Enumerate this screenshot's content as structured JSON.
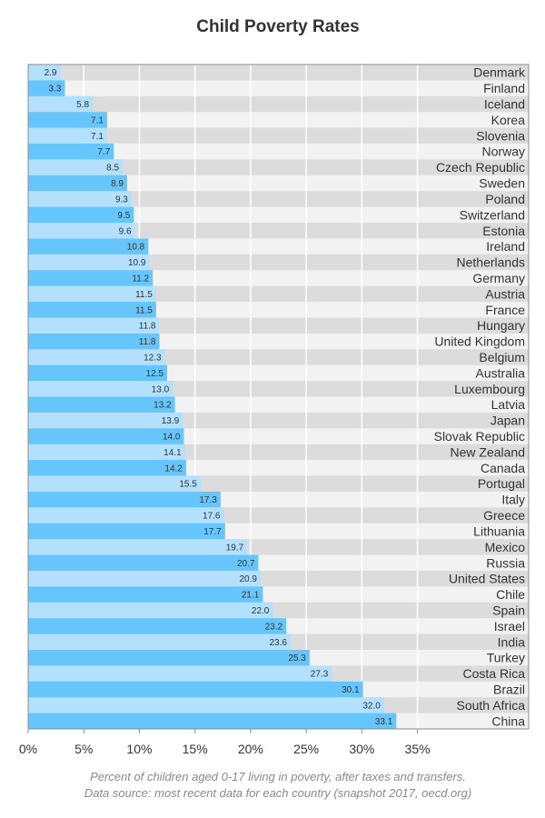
{
  "chart_data": {
    "type": "bar",
    "orientation": "horizontal",
    "title": "Child Poverty Rates",
    "xlabel": "",
    "ylabel": "",
    "xlim": [
      0,
      45
    ],
    "x_ticks": [
      0,
      5,
      10,
      15,
      20,
      25,
      30,
      35
    ],
    "x_tick_labels": [
      "0%",
      "5%",
      "10%",
      "15%",
      "20%",
      "25%",
      "30%",
      "35%"
    ],
    "grid": true,
    "legend": "none",
    "categories": [
      "Denmark",
      "Finland",
      "Iceland",
      "Korea",
      "Slovenia",
      "Norway",
      "Czech Republic",
      "Sweden",
      "Poland",
      "Switzerland",
      "Estonia",
      "Ireland",
      "Netherlands",
      "Germany",
      "Austria",
      "France",
      "Hungary",
      "United Kingdom",
      "Belgium",
      "Australia",
      "Luxembourg",
      "Latvia",
      "Japan",
      "Slovak Republic",
      "New Zealand",
      "Canada",
      "Portugal",
      "Italy",
      "Greece",
      "Lithuania",
      "Mexico",
      "Russia",
      "United States",
      "Chile",
      "Spain",
      "Israel",
      "India",
      "Turkey",
      "Costa Rica",
      "Brazil",
      "South Africa",
      "China"
    ],
    "values": [
      2.9,
      3.3,
      5.8,
      7.1,
      7.1,
      7.7,
      8.5,
      8.9,
      9.3,
      9.5,
      9.6,
      10.8,
      10.9,
      11.2,
      11.5,
      11.5,
      11.8,
      11.8,
      12.3,
      12.5,
      13.0,
      13.2,
      13.9,
      14.0,
      14.1,
      14.2,
      15.5,
      17.3,
      17.6,
      17.7,
      19.7,
      20.7,
      20.9,
      21.1,
      22.0,
      23.2,
      23.6,
      25.3,
      27.3,
      30.1,
      32.0,
      33.1
    ],
    "value_labels": [
      "2.9",
      "3.3",
      "5.8",
      "7.1",
      "7.1",
      "7.7",
      "8.5",
      "8.9",
      "9.3",
      "9.5",
      "9.6",
      "10.8",
      "10.9",
      "11.2",
      "11.5",
      "11.5",
      "11.8",
      "11.8",
      "12.3",
      "12.5",
      "13.0",
      "13.2",
      "13.9",
      "14.0",
      "14.1",
      "14.2",
      "15.5",
      "17.3",
      "17.6",
      "17.7",
      "19.7",
      "20.7",
      "20.9",
      "21.1",
      "22.0",
      "23.2",
      "23.6",
      "25.3",
      "27.3",
      "30.1",
      "32.0",
      "33.1"
    ],
    "colors": {
      "bar_even": "#b3e0fd",
      "bar_odd": "#66c6fb",
      "row_even": "#dcdcdc",
      "row_odd": "#f2f2f2",
      "grid": "#ffffff",
      "frame": "#8c8c8c"
    },
    "captions": [
      "Percent of children aged 0-17 living in poverty, after taxes and transfers.",
      "Data source: most recent data for each country (snapshot 2017, oecd.org)"
    ]
  }
}
